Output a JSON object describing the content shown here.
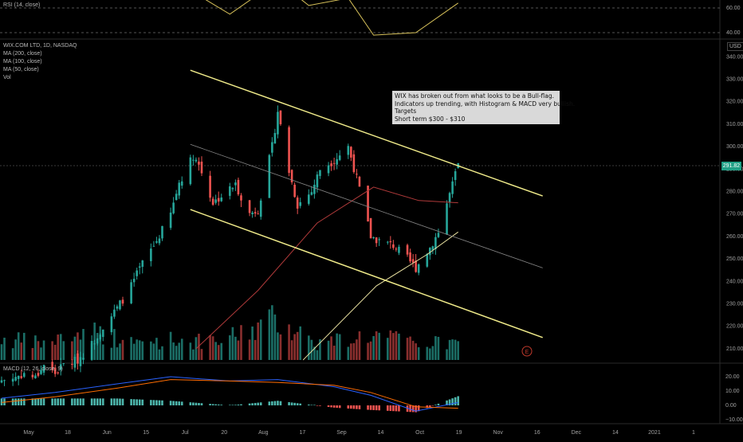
{
  "header": {
    "rsi_label": "RSI (14, close)",
    "symbol_label": "WIX.COM LTD, 1D, NASDAQ",
    "ma_labels": [
      "MA (200, close)",
      "MA (100, close)",
      "MA (50, close)"
    ],
    "vol_label": "Vol",
    "macd_label": "MACD (12, 26, close, 9)",
    "currency": "USD"
  },
  "annotation": {
    "lines": [
      "WIX has broken out from what looks to be a Bull-flag.",
      "Indicators up trending, with Histogram & MACD very bullish.",
      "Targets",
      "Short term $300 - $310"
    ]
  },
  "last_price": "291.82",
  "earnings_marker": "E",
  "colors": {
    "up": "#26a69a",
    "down": "#ef5350",
    "up_vol": "#1b6e66",
    "down_vol": "#8a2f2e",
    "channel": "#f0eb8a",
    "ma_red": "#b03a3a",
    "ma_light": "#e8e0a0",
    "macd": "#2962ff",
    "signal": "#ff6d00",
    "rsi": "#d8c25a"
  },
  "chart_data": {
    "type": "candlestick",
    "price_axis": {
      "ticks": [
        340,
        330,
        320,
        310,
        300,
        290,
        280,
        270,
        260,
        250,
        240,
        230,
        220,
        210
      ],
      "unit": "USD"
    },
    "rsi_axis": {
      "ticks": [
        60,
        40
      ]
    },
    "macd_axis": {
      "ticks": [
        20,
        10,
        0,
        -10
      ]
    },
    "x_tick_labels": [
      "May",
      "18",
      "Jun",
      "15",
      "Jul",
      "20",
      "Aug",
      "17",
      "Sep",
      "14",
      "Oct",
      "19",
      "Nov",
      "16",
      "Dec",
      "14",
      "2021",
      "1"
    ],
    "price_path": [
      [
        "2020-04-30",
        196
      ],
      [
        "2020-05-04",
        197
      ],
      [
        "2020-05-08",
        199
      ],
      [
        "2020-05-12",
        197
      ],
      [
        "2020-05-15",
        203
      ],
      [
        "2020-05-19",
        199
      ],
      [
        "2020-05-22",
        203
      ],
      [
        "2020-05-27",
        205
      ],
      [
        "2020-06-01",
        212
      ],
      [
        "2020-06-05",
        220
      ],
      [
        "2020-06-10",
        228
      ],
      [
        "2020-06-15",
        238
      ],
      [
        "2020-06-19",
        248
      ],
      [
        "2020-06-24",
        258
      ],
      [
        "2020-06-29",
        270
      ],
      [
        "2020-07-02",
        284
      ],
      [
        "2020-07-07",
        296
      ],
      [
        "2020-07-09",
        292
      ],
      [
        "2020-07-14",
        275
      ],
      [
        "2020-07-17",
        278
      ],
      [
        "2020-07-22",
        283
      ],
      [
        "2020-07-27",
        270
      ],
      [
        "2020-07-30",
        272
      ],
      [
        "2020-08-04",
        300
      ],
      [
        "2020-08-06",
        316
      ],
      [
        "2020-08-10",
        289
      ],
      [
        "2020-08-13",
        274
      ],
      [
        "2020-08-18",
        280
      ],
      [
        "2020-08-21",
        290
      ],
      [
        "2020-08-26",
        294
      ],
      [
        "2020-08-31",
        300
      ],
      [
        "2020-09-03",
        286
      ],
      [
        "2020-09-08",
        260
      ],
      [
        "2020-09-11",
        258
      ],
      [
        "2020-09-16",
        256
      ],
      [
        "2020-09-21",
        250
      ],
      [
        "2020-09-24",
        246
      ],
      [
        "2020-09-29",
        255
      ],
      [
        "2020-10-02",
        262
      ],
      [
        "2020-10-07",
        283
      ],
      [
        "2020-10-09",
        291.82
      ]
    ],
    "volume_path": [
      [
        "2020-04-30",
        0.25
      ],
      [
        "2020-05-15",
        0.2
      ],
      [
        "2020-06-01",
        0.35
      ],
      [
        "2020-06-15",
        0.2
      ],
      [
        "2020-07-01",
        0.25
      ],
      [
        "2020-07-15",
        0.2
      ],
      [
        "2020-08-06",
        0.5
      ],
      [
        "2020-08-20",
        0.2
      ],
      [
        "2020-09-08",
        0.3
      ],
      [
        "2020-09-25",
        0.2
      ],
      [
        "2020-10-09",
        0.2
      ]
    ],
    "ma_50": [
      [
        "2020-07-08",
        210
      ],
      [
        "2020-07-30",
        236
      ],
      [
        "2020-08-20",
        266
      ],
      [
        "2020-09-09",
        282
      ],
      [
        "2020-09-25",
        276
      ],
      [
        "2020-10-09",
        275
      ]
    ],
    "ma_100": [
      [
        "2020-08-15",
        205
      ],
      [
        "2020-09-10",
        238
      ],
      [
        "2020-09-28",
        252
      ],
      [
        "2020-10-09",
        262
      ]
    ],
    "channel_upper": [
      [
        "2020-07-06",
        334
      ],
      [
        "2020-11-08",
        278
      ]
    ],
    "channel_lower": [
      [
        "2020-07-06",
        272
      ],
      [
        "2020-11-08",
        215
      ]
    ],
    "channel_mid": [
      [
        "2020-07-06",
        301
      ],
      [
        "2020-11-08",
        246
      ]
    ],
    "rsi_path": [
      [
        "2020-06-25",
        75
      ],
      [
        "2020-07-09",
        70
      ],
      [
        "2020-07-20",
        55
      ],
      [
        "2020-08-06",
        82
      ],
      [
        "2020-08-17",
        62
      ],
      [
        "2020-08-31",
        68
      ],
      [
        "2020-09-09",
        38
      ],
      [
        "2020-09-24",
        40
      ],
      [
        "2020-10-09",
        64
      ]
    ],
    "macd_line": [
      [
        "2020-04-30",
        5
      ],
      [
        "2020-05-19",
        9
      ],
      [
        "2020-06-10",
        15
      ],
      [
        "2020-06-29",
        20
      ],
      [
        "2020-07-20",
        17
      ],
      [
        "2020-08-06",
        18
      ],
      [
        "2020-08-26",
        13
      ],
      [
        "2020-09-08",
        7
      ],
      [
        "2020-09-24",
        -4
      ],
      [
        "2020-10-09",
        2
      ]
    ],
    "signal_line": [
      [
        "2020-04-30",
        2
      ],
      [
        "2020-05-19",
        6
      ],
      [
        "2020-06-10",
        12
      ],
      [
        "2020-06-29",
        18
      ],
      [
        "2020-07-20",
        17
      ],
      [
        "2020-08-06",
        16
      ],
      [
        "2020-08-26",
        14
      ],
      [
        "2020-09-08",
        9
      ],
      [
        "2020-09-24",
        -1
      ],
      [
        "2020-10-09",
        -2
      ]
    ]
  }
}
